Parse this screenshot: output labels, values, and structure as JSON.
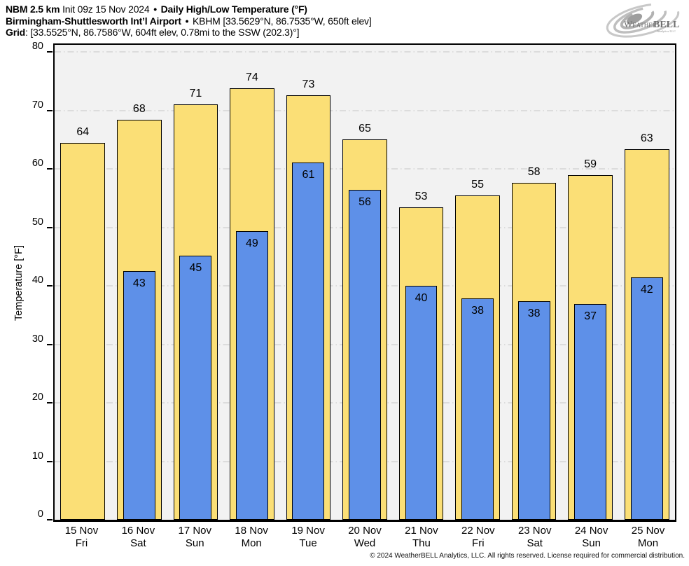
{
  "header": {
    "model": "NBM 2.5 km",
    "init": "Init 09z 15 Nov 2024",
    "separator": "•",
    "title": "Daily High/Low Temperature (°F)",
    "station": "Birmingham-Shuttlesworth Int’l Airport",
    "station_detail": "KBHM [33.5629°N, 86.7535°W, 650ft elev]",
    "grid_label": "Grid",
    "grid_detail": ": [33.5525°N, 86.7586°W, 604ft elev, 0.78mi to the SSW (202.3)°]"
  },
  "logo": {
    "name_a": "Weather",
    "name_b": "BELL",
    "subtext": "Analytics LLC"
  },
  "footer": {
    "text": "© 2024 WeatherBELL Analytics, LLC. All rights reserved. License required for commercial distribution."
  },
  "chart_data": {
    "type": "bar",
    "title": "Daily High/Low Temperature (°F)",
    "xlabel": "",
    "ylabel": "Temperature [°F]",
    "ylim": [
      0,
      81.2
    ],
    "yticks": [
      0,
      10,
      20,
      30,
      40,
      50,
      60,
      70,
      80
    ],
    "grid": "horizontal dash-dot gridlines on light gray panel",
    "legend": "none",
    "plot_bg": "#f2f2f2",
    "categories": [
      {
        "date": "15 Nov",
        "weekday": "Fri"
      },
      {
        "date": "16 Nov",
        "weekday": "Sat"
      },
      {
        "date": "17 Nov",
        "weekday": "Sun"
      },
      {
        "date": "18 Nov",
        "weekday": "Mon"
      },
      {
        "date": "19 Nov",
        "weekday": "Tue"
      },
      {
        "date": "20 Nov",
        "weekday": "Wed"
      },
      {
        "date": "21 Nov",
        "weekday": "Thu"
      },
      {
        "date": "22 Nov",
        "weekday": "Fri"
      },
      {
        "date": "23 Nov",
        "weekday": "Sat"
      },
      {
        "date": "24 Nov",
        "weekday": "Sun"
      },
      {
        "date": "25 Nov",
        "weekday": "Mon"
      }
    ],
    "series": [
      {
        "name": "Daily High",
        "color": "#fbdf76",
        "values": [
          64,
          68,
          71,
          74,
          73,
          65,
          53,
          55,
          58,
          59,
          63
        ],
        "bar_tops": [
          64.4,
          68.4,
          71.0,
          73.8,
          72.6,
          65.0,
          53.4,
          55.5,
          57.6,
          58.9,
          63.3
        ]
      },
      {
        "name": "Daily Low",
        "color": "#5e90e8",
        "values": [
          null,
          43,
          45,
          49,
          61,
          56,
          40,
          38,
          38,
          37,
          42
        ],
        "bar_tops": [
          null,
          42.5,
          45.2,
          49.3,
          61.1,
          56.4,
          40.0,
          37.8,
          37.4,
          36.9,
          41.5
        ]
      }
    ]
  }
}
